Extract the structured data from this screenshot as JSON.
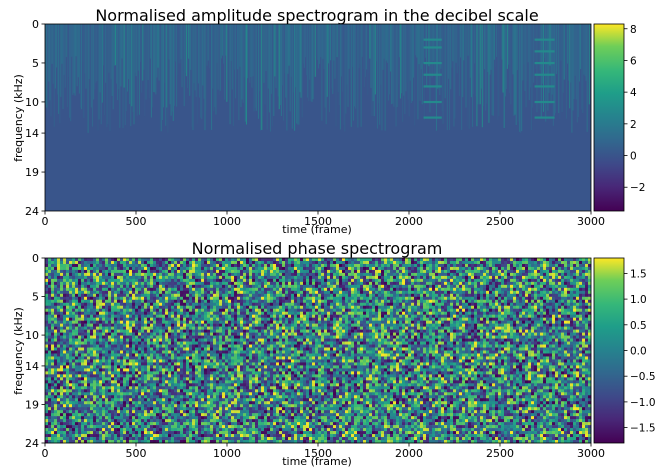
{
  "chart_data": [
    {
      "type": "heatmap",
      "title": "Normalised amplitude spectrogram in the decibel scale",
      "xlabel": "time (frame)",
      "ylabel": "frequency (kHz)",
      "xlim": [
        0,
        3000
      ],
      "ylim": [
        24,
        0
      ],
      "x_ticks": [
        "0",
        "500",
        "1000",
        "1500",
        "2000",
        "2500",
        "3000"
      ],
      "x_tick_values": [
        0,
        500,
        1000,
        1500,
        2000,
        2500,
        3000
      ],
      "y_ticks": [
        "0",
        "5",
        "10",
        "14",
        "19",
        "24"
      ],
      "y_tick_values": [
        0,
        5,
        10,
        14,
        19,
        24
      ],
      "colormap": "viridis",
      "colorbar": {
        "range": [
          -3.5,
          8.3
        ],
        "ticks": [
          "−2",
          "0",
          "2",
          "4",
          "6",
          "8"
        ],
        "tick_values": [
          -2,
          0,
          2,
          4,
          6,
          8
        ]
      },
      "background_level": 0.0,
      "bright_bands": [
        {
          "x_range": [
            2080,
            2180
          ],
          "frequencies_khz": [
            2,
            3,
            5,
            6.5,
            8,
            10,
            12
          ],
          "level": 2.8
        },
        {
          "x_range": [
            2690,
            2800
          ],
          "frequencies_khz": [
            2,
            3.5,
            5,
            6.5,
            8,
            10,
            12
          ],
          "level": 2.8
        }
      ],
      "grid": false
    },
    {
      "type": "heatmap",
      "title": "Normalised phase spectrogram",
      "xlabel": "time (frame)",
      "ylabel": "frequency (kHz)",
      "xlim": [
        0,
        3000
      ],
      "ylim": [
        24,
        0
      ],
      "x_ticks": [
        "0",
        "500",
        "1000",
        "1500",
        "2000",
        "2500",
        "3000"
      ],
      "x_tick_values": [
        0,
        500,
        1000,
        1500,
        2000,
        2500,
        3000
      ],
      "y_ticks": [
        "0",
        "5",
        "10",
        "14",
        "19",
        "24"
      ],
      "y_tick_values": [
        0,
        5,
        10,
        14,
        19,
        24
      ],
      "colormap": "viridis",
      "colorbar": {
        "range": [
          -1.8,
          1.8
        ],
        "ticks": [
          "1.5",
          "1.0",
          "0.5",
          "0.0",
          "−0.5",
          "−1.0",
          "−1.5"
        ],
        "tick_values": [
          1.5,
          1.0,
          0.5,
          0.0,
          -0.5,
          -1.0,
          -1.5
        ]
      },
      "distribution": "uniform random noise",
      "grid": false
    }
  ]
}
